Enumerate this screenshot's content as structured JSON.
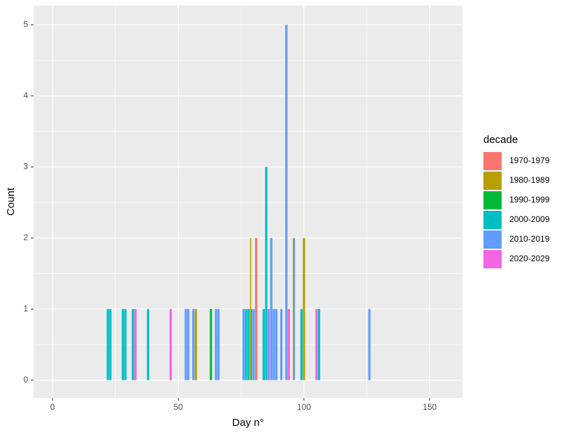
{
  "chart_data": {
    "type": "bar",
    "x_label": "Day n°",
    "y_label": "Count",
    "legend_title": "decade",
    "xlim": [
      -7.5,
      163
    ],
    "ylim": [
      -0.25,
      5.27
    ],
    "xticks": [
      0,
      50,
      100,
      150
    ],
    "yticks": [
      0,
      1,
      2,
      3,
      4,
      5
    ],
    "grid": true,
    "legend": "right",
    "series": [
      {
        "name": "1970-1979",
        "color": "#F8766D",
        "x": [
          81
        ],
        "values": [
          2
        ]
      },
      {
        "name": "1980-1989",
        "color": "#B79F00",
        "x": [
          57,
          79,
          96,
          100
        ],
        "values": [
          1,
          2,
          2,
          2
        ]
      },
      {
        "name": "1990-1999",
        "color": "#00BA38",
        "x": [
          63
        ],
        "values": [
          1
        ]
      },
      {
        "name": "2000-2009",
        "color": "#00BFC4",
        "x": [
          22,
          23,
          28,
          29,
          32,
          38,
          77,
          78,
          79,
          84,
          85,
          99,
          106
        ],
        "values": [
          1,
          1,
          1,
          1,
          1,
          1,
          1,
          1,
          1,
          1,
          3,
          1,
          1
        ]
      },
      {
        "name": "2010-2019",
        "color": "#619CFF",
        "x": [
          53,
          54,
          56,
          65,
          66,
          76,
          80,
          86,
          87,
          88,
          89,
          91,
          93,
          96,
          126
        ],
        "values": [
          1,
          1,
          1,
          1,
          1,
          1,
          1,
          1,
          2,
          1,
          1,
          1,
          5,
          2,
          1
        ]
      },
      {
        "name": "2020-2029",
        "color": "#F564E3",
        "x": [
          33,
          47,
          86,
          94,
          105
        ],
        "values": [
          1,
          1,
          1,
          1,
          1
        ]
      }
    ]
  }
}
